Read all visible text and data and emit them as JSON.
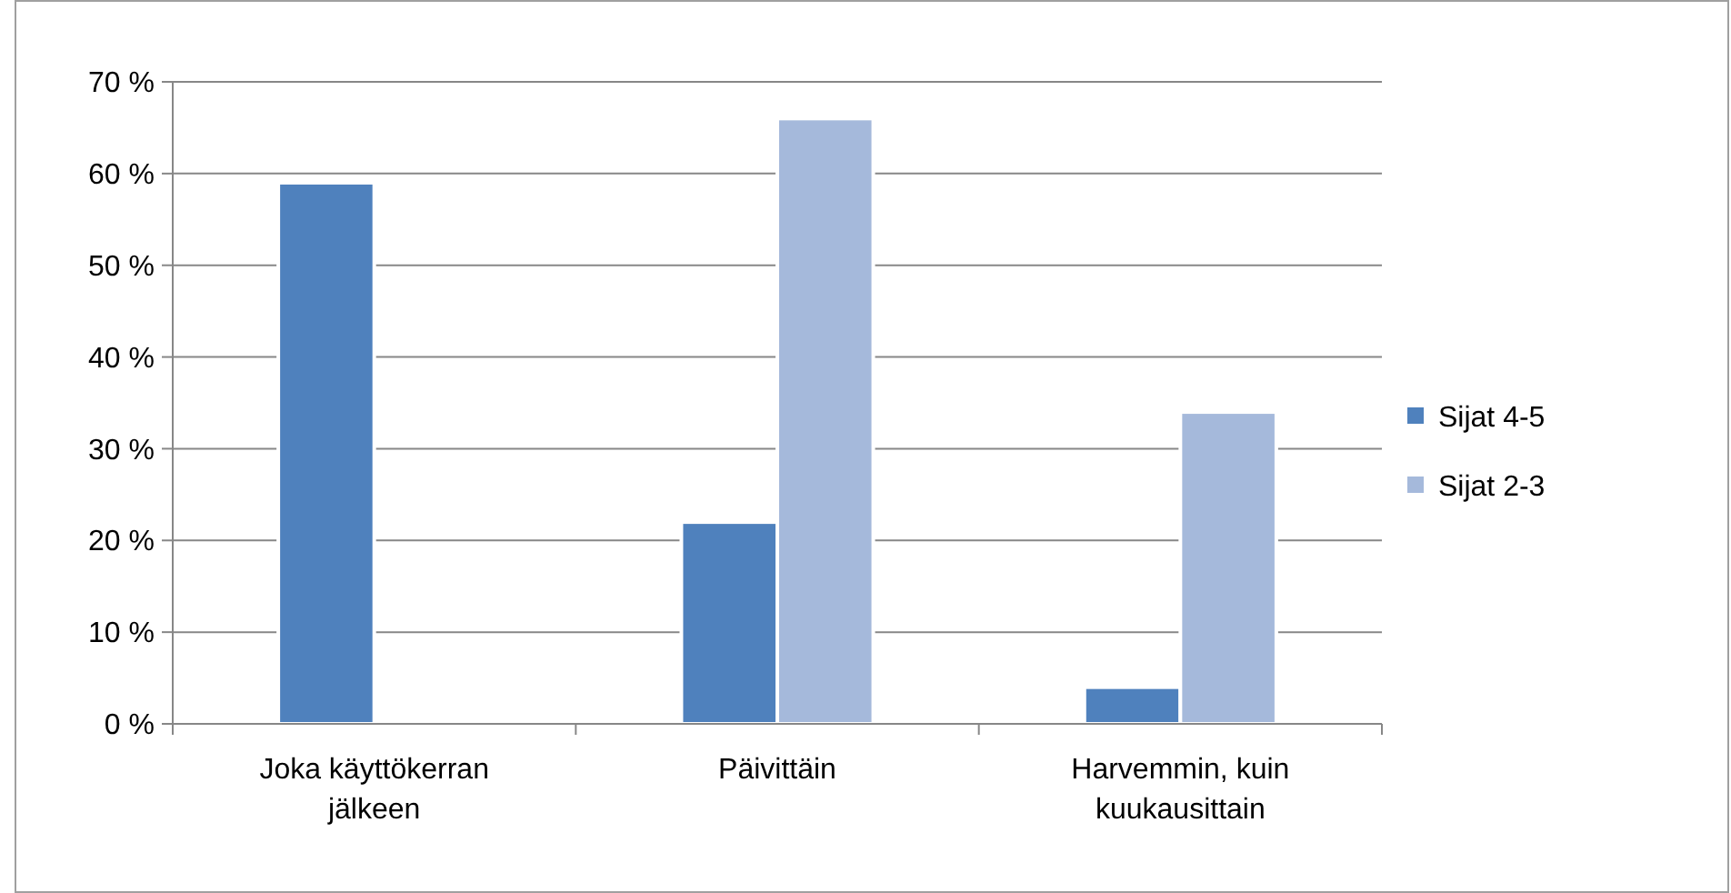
{
  "chart_data": {
    "type": "bar",
    "categories": [
      "Joka käyttökerran jälkeen",
      "Päivittäin",
      "Harvemmin, kuin kuukausittain"
    ],
    "series": [
      {
        "name": "Sijat 4-5",
        "color": "#4f81bd",
        "values": [
          59,
          22,
          4
        ]
      },
      {
        "name": "Sijat 2-3",
        "color": "#a5b9db",
        "values": [
          null,
          66,
          34
        ]
      }
    ],
    "ylim": [
      0,
      70
    ],
    "yticks": [
      {
        "value": 0,
        "label": "0 %"
      },
      {
        "value": 10,
        "label": "10 %"
      },
      {
        "value": 20,
        "label": "20 %"
      },
      {
        "value": 30,
        "label": "30 %"
      },
      {
        "value": 40,
        "label": "40 %"
      },
      {
        "value": 50,
        "label": "50 %"
      },
      {
        "value": 60,
        "label": "60 %"
      },
      {
        "value": 70,
        "label": "70 %"
      }
    ],
    "grid": "y",
    "legend": "right"
  }
}
